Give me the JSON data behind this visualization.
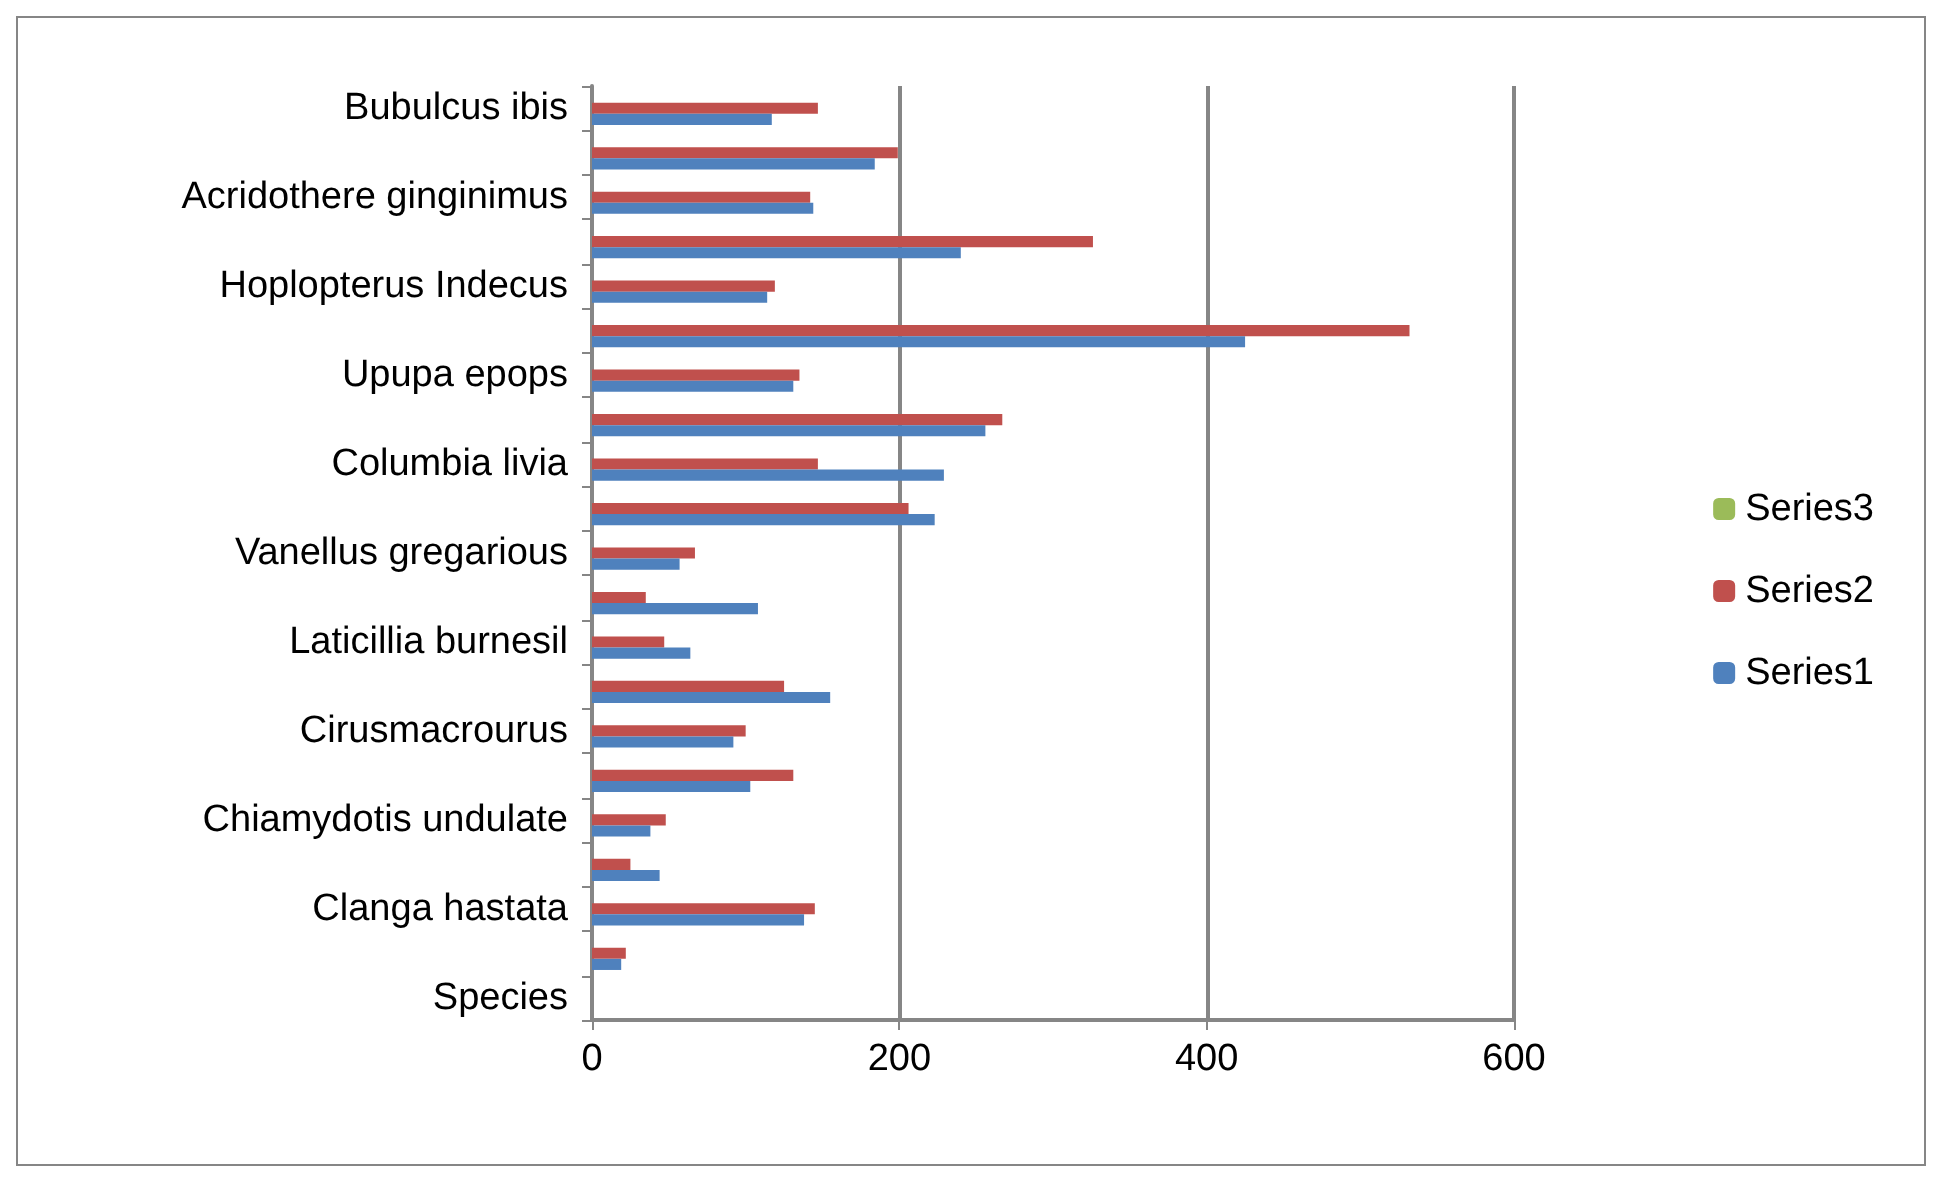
{
  "chart_data": {
    "type": "bar",
    "orientation": "horizontal",
    "categories": [
      "Bubulcus ibis",
      null,
      "Acridothere ginginimus",
      null,
      "Hoplopterus Indecus",
      null,
      "Upupa epops",
      null,
      "Columbia livia",
      null,
      "Vanellus gregarious",
      null,
      "Laticillia burnesil",
      null,
      "Cirusmacrourus",
      null,
      "Chiamydotis undulate",
      null,
      "Clanga hastata",
      null,
      "Species"
    ],
    "series": [
      {
        "name": "Series1",
        "color": "#4f81bd",
        "values": [
          117,
          184,
          144,
          240,
          114,
          425,
          131,
          256,
          229,
          223,
          57,
          108,
          64,
          155,
          92,
          103,
          38,
          44,
          138,
          19,
          null
        ]
      },
      {
        "name": "Series2",
        "color": "#c0504d",
        "values": [
          147,
          199,
          142,
          326,
          119,
          532,
          135,
          267,
          147,
          206,
          67,
          35,
          47,
          125,
          100,
          131,
          48,
          25,
          145,
          22,
          null
        ]
      },
      {
        "name": "Series3",
        "color": "#9bbb59",
        "values": [
          null,
          null,
          null,
          null,
          null,
          null,
          null,
          null,
          null,
          null,
          null,
          null,
          null,
          null,
          null,
          null,
          null,
          null,
          null,
          null,
          null
        ]
      }
    ],
    "xlim": [
      0,
      600
    ],
    "xticks": [
      0,
      200,
      400,
      600
    ],
    "grid": "x",
    "legend": "right"
  }
}
